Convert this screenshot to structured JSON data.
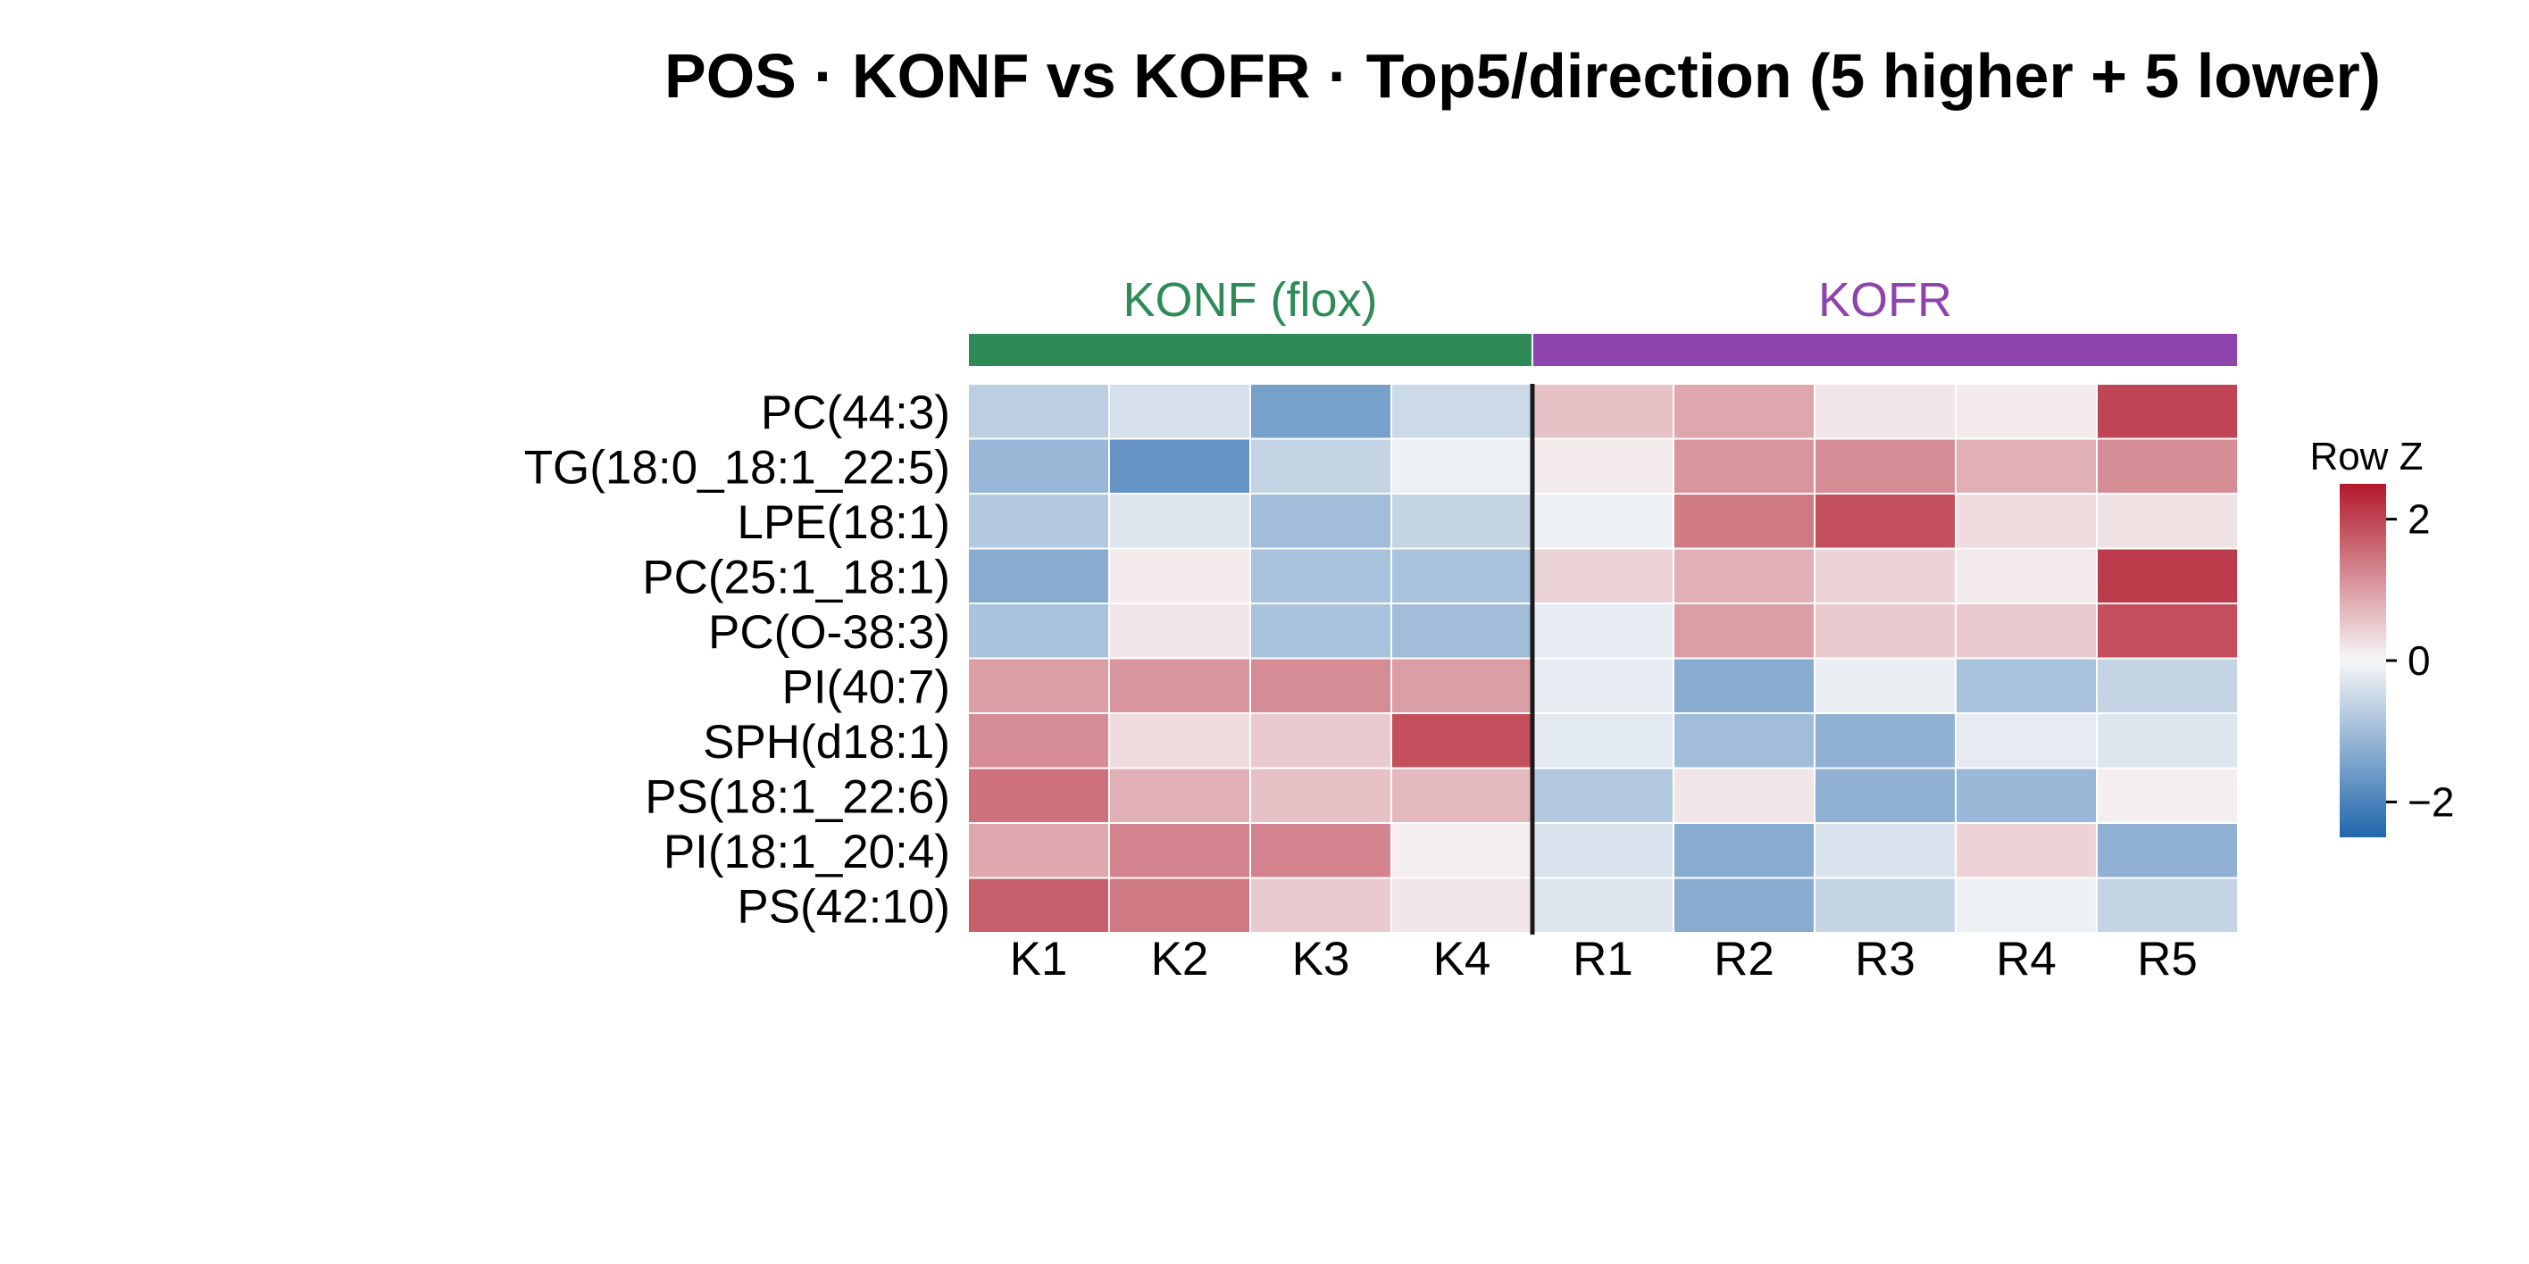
{
  "chart_data": {
    "type": "heatmap",
    "title": "POS · KONF vs KOFR · Top5/direction (5 higher + 5 lower)",
    "rows": [
      "PC(44:3)",
      "TG(18:0_18:1_22:5)",
      "LPE(18:1)",
      "PC(25:1_18:1)",
      "PC(O-38:3)",
      "PI(40:7)",
      "SPH(d18:1)",
      "PS(18:1_22:6)",
      "PI(18:1_20:4)",
      "PS(42:10)"
    ],
    "columns": [
      "K1",
      "K2",
      "K3",
      "K4",
      "R1",
      "R2",
      "R3",
      "R4",
      "R5"
    ],
    "groups": [
      {
        "label": "KONF (flox)",
        "columns": [
          "K1",
          "K2",
          "K3",
          "K4"
        ],
        "color": "#2e8b57"
      },
      {
        "label": "KOFR",
        "columns": [
          "R1",
          "R2",
          "R3",
          "R4",
          "R5"
        ],
        "color": "#8e44ad"
      }
    ],
    "values": [
      [
        -0.7,
        -0.4,
        -1.5,
        -0.5,
        0.6,
        0.9,
        0.2,
        0.15,
        2.0
      ],
      [
        -1.1,
        -1.7,
        -0.6,
        -0.1,
        0.15,
        1.1,
        1.2,
        0.8,
        1.2
      ],
      [
        -0.8,
        -0.3,
        -1.0,
        -0.6,
        -0.1,
        1.4,
        1.9,
        0.3,
        0.25
      ],
      [
        -1.3,
        0.15,
        -0.9,
        -0.9,
        0.4,
        0.8,
        0.4,
        0.15,
        2.1
      ],
      [
        -0.9,
        0.2,
        -0.9,
        -1.0,
        -0.2,
        1.0,
        0.5,
        0.5,
        1.9
      ],
      [
        1.0,
        1.1,
        1.2,
        1.0,
        -0.2,
        -1.3,
        -0.15,
        -0.9,
        -0.6
      ],
      [
        1.2,
        0.3,
        0.5,
        1.9,
        -0.25,
        -1.0,
        -1.2,
        -0.2,
        -0.3
      ],
      [
        1.5,
        0.8,
        0.6,
        0.7,
        -0.8,
        0.2,
        -1.2,
        -1.1,
        0.1
      ],
      [
        0.9,
        1.3,
        1.3,
        0.1,
        -0.35,
        -1.3,
        -0.35,
        0.4,
        -1.2
      ],
      [
        1.7,
        1.4,
        0.5,
        0.2,
        -0.3,
        -1.3,
        -0.6,
        -0.1,
        -0.6
      ]
    ],
    "colorbar": {
      "label": "Row Z",
      "min": -2.5,
      "max": 2.5,
      "ticks": [
        2,
        0,
        -2
      ],
      "tick_labels": [
        "2",
        "0",
        "−2"
      ],
      "color_low": "#2166ac",
      "color_mid": "#f7f7f7",
      "color_high": "#b2182b"
    }
  }
}
